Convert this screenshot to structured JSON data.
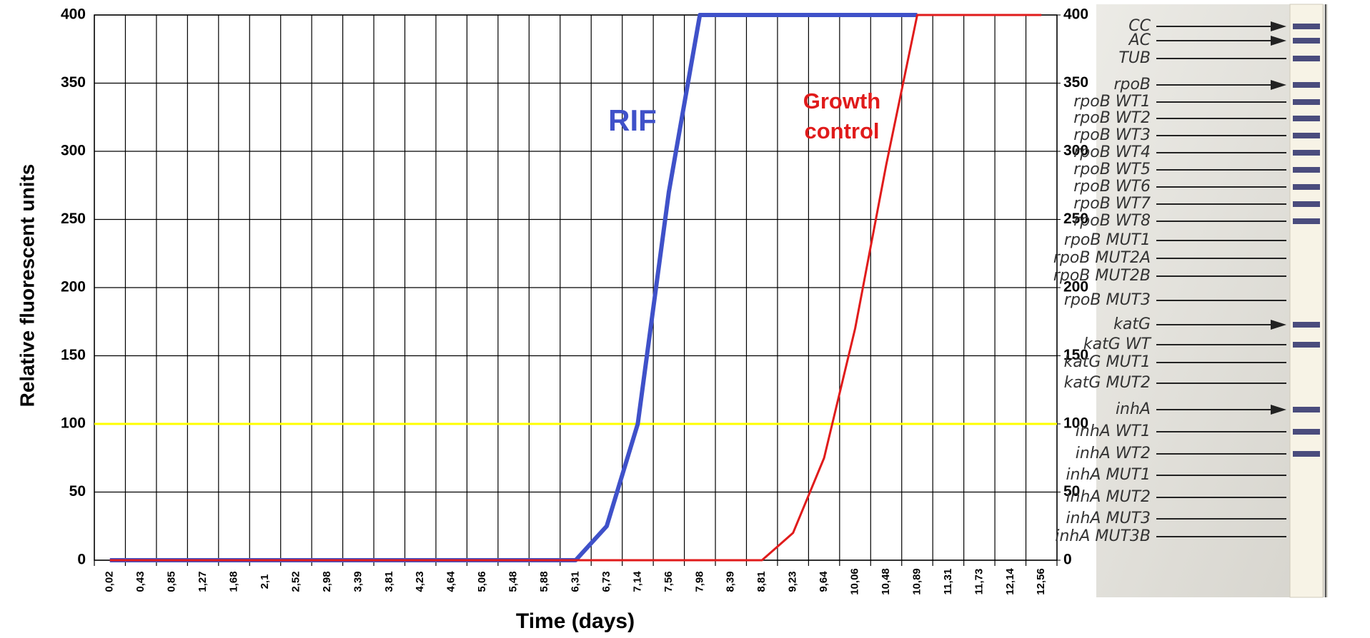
{
  "chart_data": {
    "type": "line",
    "ylabel": "Relative fluorescent units",
    "xlabel": "Time (days)",
    "categories": [
      "0,02",
      "0,43",
      "0,85",
      "1,27",
      "1,68",
      "2,1",
      "2,52",
      "2,98",
      "3,39",
      "3,81",
      "4,23",
      "4,64",
      "5,06",
      "5,48",
      "5,88",
      "6,31",
      "6,73",
      "7,14",
      "7,56",
      "7,98",
      "8,39",
      "8,81",
      "9,23",
      "9,64",
      "10,06",
      "10,48",
      "10,89",
      "11,31",
      "11,73",
      "12,14",
      "12,56"
    ],
    "series": [
      {
        "name": "RIF",
        "color": "#3f51c9",
        "values": [
          0,
          0,
          0,
          0,
          0,
          0,
          0,
          0,
          0,
          0,
          0,
          0,
          0,
          0,
          0,
          0,
          25,
          100,
          270,
          400,
          400,
          400,
          400,
          400,
          400,
          400,
          400,
          null,
          null,
          null,
          null
        ]
      },
      {
        "name": "Growth control",
        "color": "#e01b1b",
        "values": [
          0,
          0,
          0,
          0,
          0,
          0,
          0,
          0,
          0,
          0,
          0,
          0,
          0,
          0,
          0,
          0,
          0,
          0,
          0,
          0,
          0,
          0,
          20,
          75,
          170,
          290,
          400,
          400,
          400,
          400,
          400
        ]
      }
    ],
    "threshold": {
      "value": 100,
      "color": "#ffff00"
    },
    "ylim": [
      0,
      400
    ],
    "yticks": [
      0,
      50,
      100,
      150,
      200,
      250,
      300,
      350,
      400
    ],
    "y2lim": [
      0,
      400
    ],
    "y2ticks": [
      0,
      50,
      100,
      150,
      200,
      250,
      300,
      350,
      400
    ],
    "grid": true
  },
  "strip": {
    "labels": [
      {
        "text": "CC",
        "arrow": true,
        "band": true
      },
      {
        "text": "AC",
        "arrow": true,
        "band": true
      },
      {
        "text": "TUB",
        "arrow": false,
        "band": true
      },
      {
        "text": "rpoB",
        "arrow": true,
        "band": true
      },
      {
        "text": "rpoB WT1",
        "arrow": false,
        "band": true
      },
      {
        "text": "rpoB WT2",
        "arrow": false,
        "band": true
      },
      {
        "text": "rpoB WT3",
        "arrow": false,
        "band": true
      },
      {
        "text": "rpoB WT4",
        "arrow": false,
        "band": true
      },
      {
        "text": "rpoB WT5",
        "arrow": false,
        "band": true
      },
      {
        "text": "rpoB WT6",
        "arrow": false,
        "band": true
      },
      {
        "text": "rpoB WT7",
        "arrow": false,
        "band": true
      },
      {
        "text": "rpoB WT8",
        "arrow": false,
        "band": true
      },
      {
        "text": "rpoB MUT1",
        "arrow": false,
        "band": false
      },
      {
        "text": "rpoB MUT2A",
        "arrow": false,
        "band": false
      },
      {
        "text": "rpoB MUT2B",
        "arrow": false,
        "band": false
      },
      {
        "text": "rpoB MUT3",
        "arrow": false,
        "band": false
      },
      {
        "text": "katG",
        "arrow": true,
        "band": true
      },
      {
        "text": "katG WT",
        "arrow": false,
        "band": true
      },
      {
        "text": "katG MUT1",
        "arrow": false,
        "band": false
      },
      {
        "text": "katG MUT2",
        "arrow": false,
        "band": false
      },
      {
        "text": "inhA",
        "arrow": true,
        "band": true
      },
      {
        "text": "inhA WT1",
        "arrow": false,
        "band": true
      },
      {
        "text": "inhA WT2",
        "arrow": false,
        "band": true
      },
      {
        "text": "inhA MUT1",
        "arrow": false,
        "band": false
      },
      {
        "text": "inhA MUT2",
        "arrow": false,
        "band": false
      },
      {
        "text": "inhA MUT3",
        "arrow": false,
        "band": false
      },
      {
        "text": "inhA MUT3B",
        "arrow": false,
        "band": false
      }
    ]
  }
}
